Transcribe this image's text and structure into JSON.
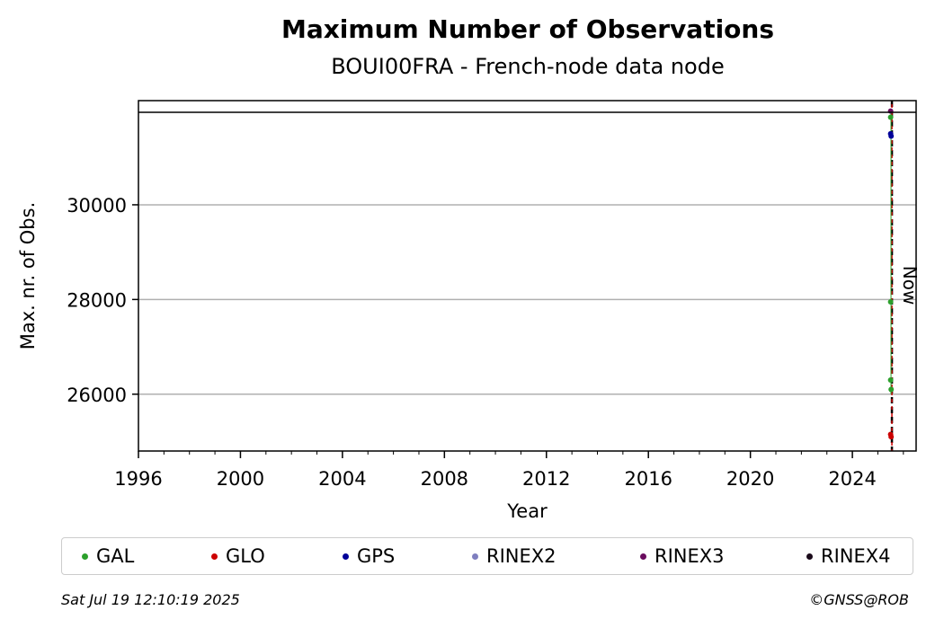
{
  "chart_data": {
    "type": "scatter",
    "title": "Maximum Number of Observations",
    "subtitle": "BOUI00FRA - French-node data node",
    "xlabel": "Year",
    "ylabel": "Max. nr. of Obs.",
    "xlim": [
      1996,
      2026.5
    ],
    "ylim": [
      24800,
      32200
    ],
    "xticks": [
      1996,
      2000,
      2004,
      2008,
      2012,
      2016,
      2020,
      2024
    ],
    "yticks": [
      26000,
      28000,
      30000
    ],
    "grid": "horizontal",
    "now_marker": {
      "x": 2025.55,
      "label": "Now"
    },
    "series": [
      {
        "name": "GAL",
        "color": "#2ca02c",
        "points": [
          [
            2025.5,
            26300
          ],
          [
            2025.52,
            26100
          ],
          [
            2025.5,
            27950
          ],
          [
            2025.5,
            31850
          ]
        ]
      },
      {
        "name": "GLO",
        "color": "#cc0000",
        "points": [
          [
            2025.5,
            25150
          ],
          [
            2025.52,
            25100
          ]
        ]
      },
      {
        "name": "GPS",
        "color": "#000099",
        "points": [
          [
            2025.5,
            31500
          ],
          [
            2025.52,
            31450
          ]
        ]
      },
      {
        "name": "RINEX2",
        "color": "#7f7fbf",
        "points": []
      },
      {
        "name": "RINEX3",
        "color": "#6a0c5e",
        "points": [
          [
            2025.5,
            31980
          ]
        ]
      },
      {
        "name": "RINEX4",
        "color": "#1a0a1a",
        "points": []
      }
    ]
  },
  "footer": {
    "timestamp": "Sat Jul 19 12:10:19 2025",
    "copyright": "©GNSS@ROB"
  }
}
